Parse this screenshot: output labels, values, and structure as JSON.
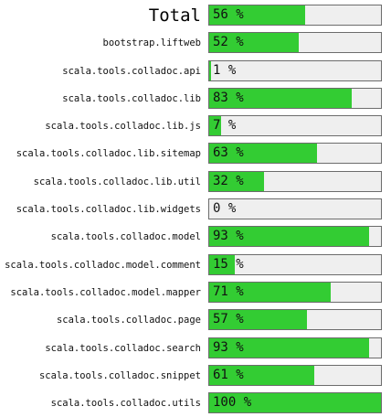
{
  "colors": {
    "fill": "#33cc33",
    "track": "#efefef",
    "border": "#6c6c6c"
  },
  "rows": [
    {
      "name": "Total",
      "percent": 56,
      "percent_text": "56 %",
      "is_total": true
    },
    {
      "name": "bootstrap.liftweb",
      "percent": 52,
      "percent_text": "52 %"
    },
    {
      "name": "scala.tools.colladoc.api",
      "percent": 1,
      "percent_text": "1 %"
    },
    {
      "name": "scala.tools.colladoc.lib",
      "percent": 83,
      "percent_text": "83 %"
    },
    {
      "name": "scala.tools.colladoc.lib.js",
      "percent": 7,
      "percent_text": "7 %"
    },
    {
      "name": "scala.tools.colladoc.lib.sitemap",
      "percent": 63,
      "percent_text": "63 %"
    },
    {
      "name": "scala.tools.colladoc.lib.util",
      "percent": 32,
      "percent_text": "32 %"
    },
    {
      "name": "scala.tools.colladoc.lib.widgets",
      "percent": 0,
      "percent_text": "0 %"
    },
    {
      "name": "scala.tools.colladoc.model",
      "percent": 93,
      "percent_text": "93 %"
    },
    {
      "name": "scala.tools.colladoc.model.comment",
      "percent": 15,
      "percent_text": "15 %"
    },
    {
      "name": "scala.tools.colladoc.model.mapper",
      "percent": 71,
      "percent_text": "71 %"
    },
    {
      "name": "scala.tools.colladoc.page",
      "percent": 57,
      "percent_text": "57 %"
    },
    {
      "name": "scala.tools.colladoc.search",
      "percent": 93,
      "percent_text": "93 %"
    },
    {
      "name": "scala.tools.colladoc.snippet",
      "percent": 61,
      "percent_text": "61 %"
    },
    {
      "name": "scala.tools.colladoc.utils",
      "percent": 100,
      "percent_text": "100 %"
    }
  ]
}
